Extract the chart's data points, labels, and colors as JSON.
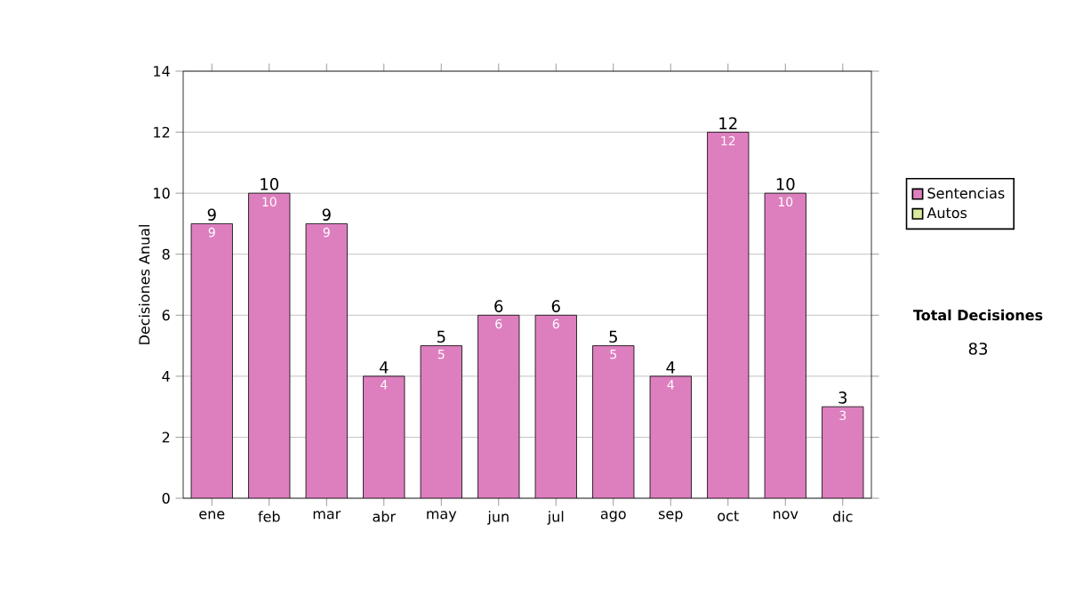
{
  "chart_data": {
    "type": "bar",
    "ylabel": "Decisiones Anual",
    "categories": [
      "ene",
      "feb",
      "mar",
      "abr",
      "may",
      "jun",
      "jul",
      "ago",
      "sep",
      "oct",
      "nov",
      "dic"
    ],
    "series": [
      {
        "name": "Sentencias",
        "color": "#dd7fbf",
        "values": [
          9,
          10,
          9,
          4,
          5,
          6,
          6,
          5,
          4,
          12,
          10,
          3
        ]
      },
      {
        "name": "Autos",
        "color": "#d8ea9c",
        "values": [
          null,
          null,
          null,
          null,
          null,
          null,
          null,
          null,
          null,
          null,
          null,
          null
        ]
      }
    ],
    "ylim": [
      0,
      14
    ],
    "yticks": [
      0,
      2,
      4,
      6,
      8,
      10,
      12,
      14
    ],
    "grid": "y",
    "legend": "right",
    "data_labels": true,
    "totals": [
      "9",
      "10",
      "9",
      "4",
      "5",
      "6",
      "6",
      "5",
      "4",
      "12",
      "10",
      "3"
    ],
    "annotations": [
      "Total Decisiones",
      "83"
    ]
  }
}
